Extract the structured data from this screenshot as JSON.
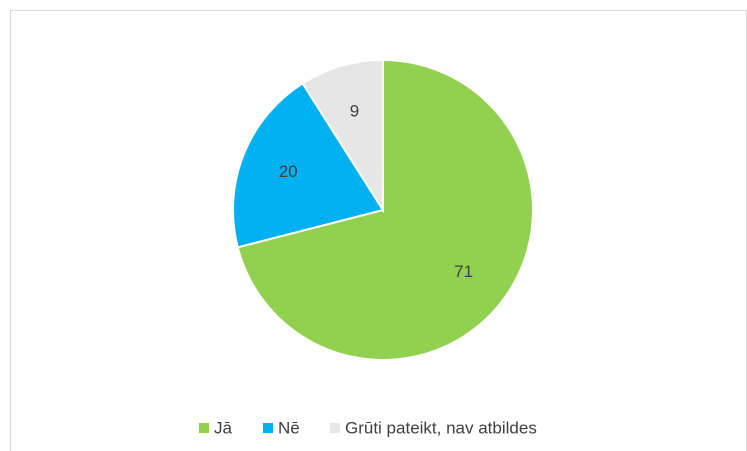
{
  "chart_data": {
    "type": "pie",
    "categories": [
      "Jā",
      "Nē",
      "Grūti pateikt, nav atbildes"
    ],
    "values": [
      71,
      20,
      9
    ],
    "colors": [
      "#92d050",
      "#00b0f0",
      "#e7e6e6"
    ],
    "legend": "bottom"
  }
}
